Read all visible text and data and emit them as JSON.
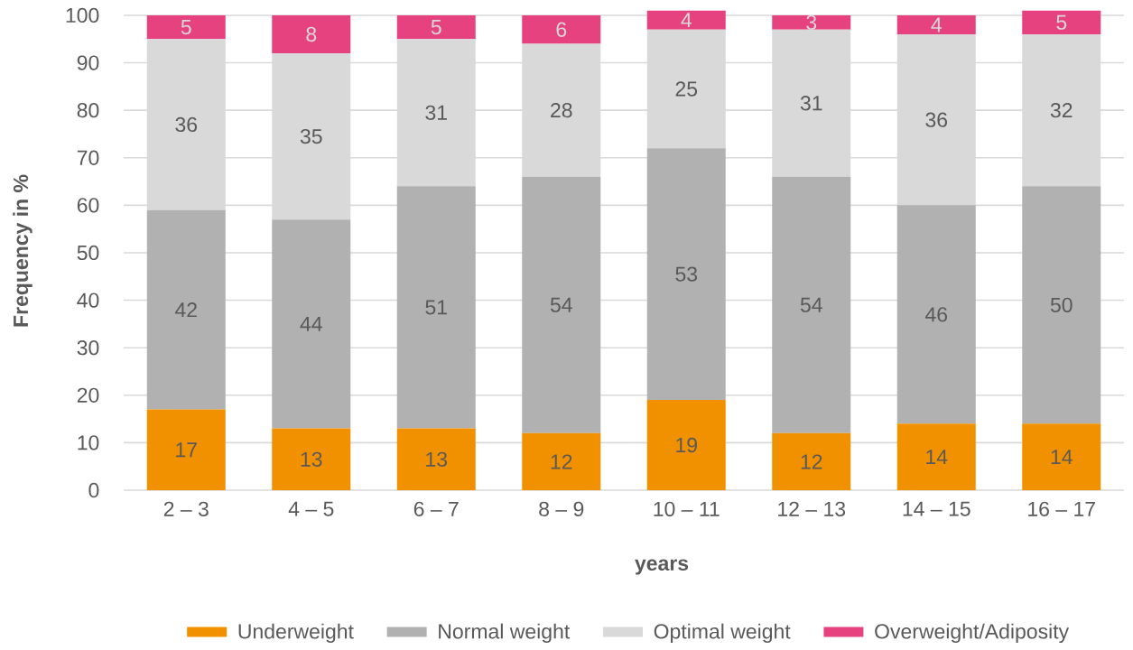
{
  "chart_data": {
    "type": "bar",
    "stacked": true,
    "xlabel": "years",
    "ylabel": "Frequency in %",
    "categories": [
      "2 – 3",
      "4 – 5",
      "6 – 7",
      "8 – 9",
      "10 – 11",
      "12 – 13",
      "14 – 15",
      "16 – 17"
    ],
    "series": [
      {
        "name": "Underweight",
        "color": "#f29100",
        "values": [
          17,
          13,
          13,
          12,
          19,
          12,
          14,
          14
        ]
      },
      {
        "name": "Normal weight",
        "color": "#b1b1b1",
        "values": [
          42,
          44,
          51,
          54,
          53,
          54,
          46,
          50
        ]
      },
      {
        "name": "Optimal weight",
        "color": "#d9d9d9",
        "values": [
          36,
          35,
          31,
          28,
          25,
          31,
          36,
          32
        ]
      },
      {
        "name": "Overweight/Adiposity",
        "color": "#e6427f",
        "values": [
          5,
          8,
          5,
          6,
          4,
          3,
          4,
          5
        ]
      }
    ],
    "ylim": [
      0,
      101
    ],
    "yticks": [
      0,
      10,
      20,
      30,
      40,
      50,
      60,
      70,
      80,
      90,
      100
    ],
    "grid": "y",
    "legend": "bottom",
    "data_labels": true
  }
}
